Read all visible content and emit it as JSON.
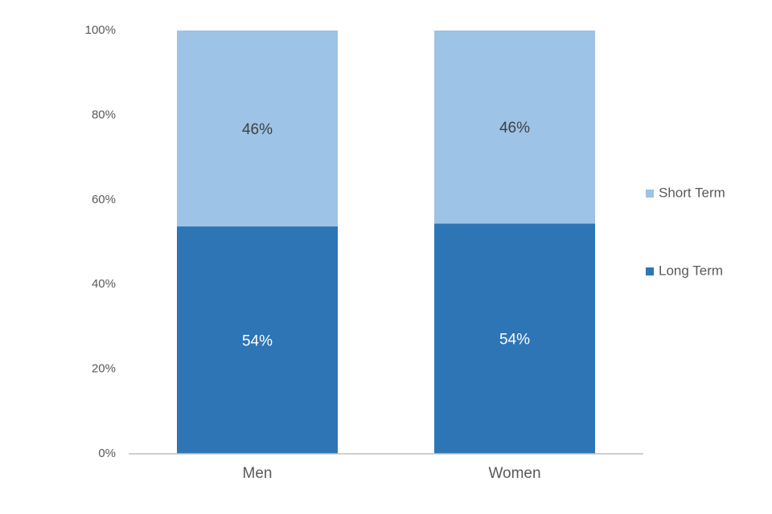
{
  "chart_data": {
    "type": "stacked_bar",
    "categories": [
      "Men",
      "Women"
    ],
    "series": [
      {
        "name": "Long Term",
        "color": "#2e75b6",
        "values": [
          53.7,
          54.4
        ],
        "value_labels": [
          "54%",
          "54%"
        ]
      },
      {
        "name": "Short Term",
        "color": "#9dc3e6",
        "values": [
          46.3,
          45.6
        ],
        "value_labels": [
          "46%",
          "46%"
        ]
      }
    ],
    "ylim": [
      0,
      100
    ],
    "yticks": [
      {
        "value": 0,
        "label": "0%"
      },
      {
        "value": 20,
        "label": "20%"
      },
      {
        "value": 40,
        "label": "40%"
      },
      {
        "value": 60,
        "label": "60%"
      },
      {
        "value": 80,
        "label": "80%"
      },
      {
        "value": 100,
        "label": "100%"
      }
    ],
    "grid": false,
    "legend": "right"
  }
}
